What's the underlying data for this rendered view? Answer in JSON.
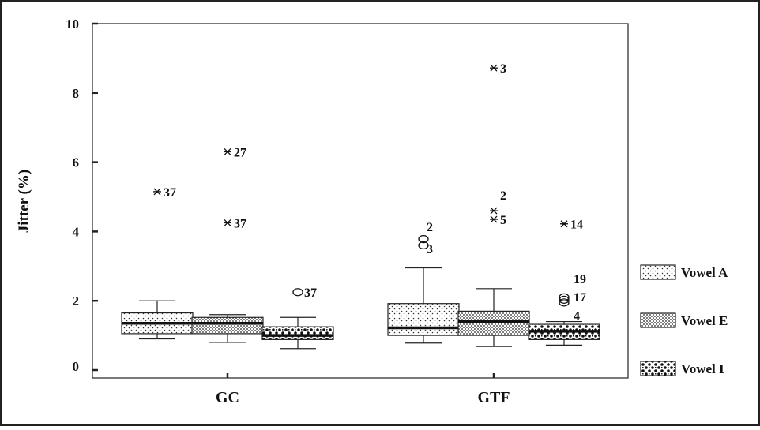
{
  "chart_data": {
    "type": "boxplot",
    "ylabel": "Jitter (%)",
    "ylim": [
      0,
      10
    ],
    "yticks": [
      {
        "value": 0,
        "label": "0"
      },
      {
        "value": 2,
        "label": "2"
      },
      {
        "value": 4,
        "label": "4"
      },
      {
        "value": 6,
        "label": "6"
      },
      {
        "value": 8,
        "label": "8"
      },
      {
        "value": 10,
        "label": "10"
      }
    ],
    "categories": [
      "GC",
      "GTF"
    ],
    "series": [
      {
        "name": "Vowel A",
        "pattern": "sparse-dots",
        "boxes": [
          {
            "whisker_low": 0.9,
            "q1": 1.05,
            "median": 1.35,
            "q3": 1.65,
            "whisker_high": 2.0
          },
          {
            "whisker_low": 0.78,
            "q1": 1.0,
            "median": 1.22,
            "q3": 1.92,
            "whisker_high": 2.95
          }
        ]
      },
      {
        "name": "Vowel E",
        "pattern": "dense-dots",
        "boxes": [
          {
            "whisker_low": 0.8,
            "q1": 1.05,
            "median": 1.35,
            "q3": 1.52,
            "whisker_high": 1.6
          },
          {
            "whisker_low": 0.68,
            "q1": 1.0,
            "median": 1.4,
            "q3": 1.7,
            "whisker_high": 2.35
          }
        ]
      },
      {
        "name": "Vowel I",
        "pattern": "coarse-dots",
        "boxes": [
          {
            "whisker_low": 0.62,
            "q1": 0.88,
            "median": 1.0,
            "q3": 1.25,
            "whisker_high": 1.52
          },
          {
            "whisker_low": 0.72,
            "q1": 0.88,
            "median": 1.12,
            "q3": 1.32,
            "whisker_high": 1.4
          }
        ]
      }
    ],
    "outliers": [
      {
        "category": "GC",
        "series": "Vowel A",
        "marker": "star",
        "y": 5.15,
        "label": "37"
      },
      {
        "category": "GC",
        "series": "Vowel E",
        "marker": "star",
        "y": 6.3,
        "label": "27"
      },
      {
        "category": "GC",
        "series": "Vowel E",
        "marker": "star",
        "y": 4.25,
        "label": "37"
      },
      {
        "category": "GC",
        "series": "Vowel I",
        "marker": "circle",
        "y": 2.25,
        "label": "37"
      },
      {
        "category": "GTF",
        "series": "Vowel A",
        "marker": "circle",
        "y": 3.78,
        "label": "2"
      },
      {
        "category": "GTF",
        "series": "Vowel A",
        "marker": "circle",
        "y": 3.6,
        "label": "3"
      },
      {
        "category": "GTF",
        "series": "Vowel E",
        "marker": "star",
        "y": 8.72,
        "label": "3"
      },
      {
        "category": "GTF",
        "series": "Vowel E",
        "marker": "star",
        "y": 4.6,
        "label": "2"
      },
      {
        "category": "GTF",
        "series": "Vowel E",
        "marker": "star",
        "y": 4.35,
        "label": "5"
      },
      {
        "category": "GTF",
        "series": "Vowel I",
        "marker": "star",
        "y": 4.22,
        "label": "14"
      },
      {
        "category": "GTF",
        "series": "Vowel I",
        "marker": "circle",
        "y": 2.1,
        "label": "19"
      },
      {
        "category": "GTF",
        "series": "Vowel I",
        "marker": "circle",
        "y": 2.03,
        "label": "17"
      },
      {
        "category": "GTF",
        "series": "Vowel I",
        "marker": "circle",
        "y": 1.95,
        "label": "4"
      }
    ],
    "legend": {
      "position": "right",
      "entries": [
        "Vowel A",
        "Vowel E",
        "Vowel I"
      ]
    },
    "grid": false
  }
}
